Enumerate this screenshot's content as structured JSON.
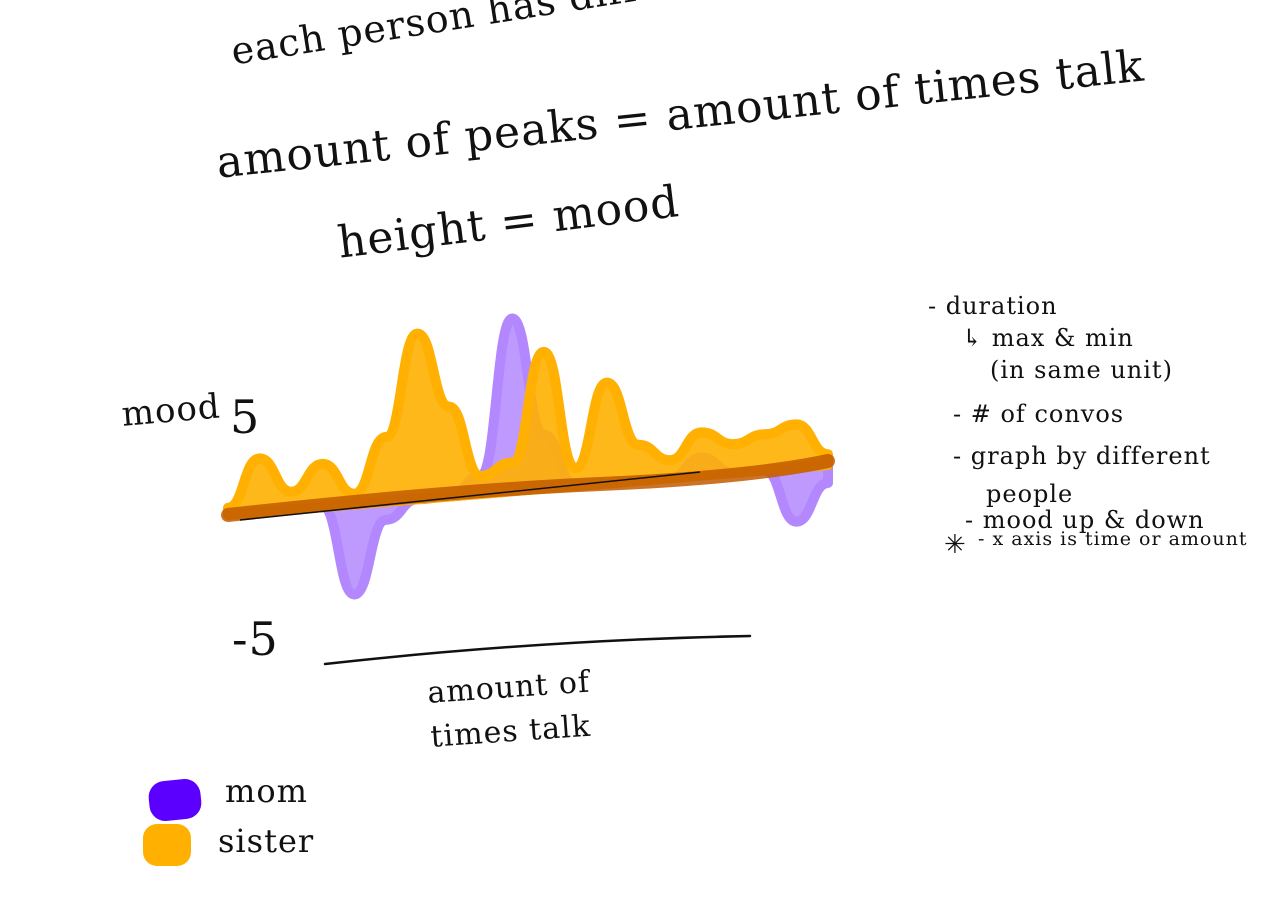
{
  "heading": {
    "line1": "each person has different color",
    "line2": "amount of peaks = amount of times talk",
    "line3": "height = mood"
  },
  "axes": {
    "y_label": "mood",
    "y_max": "5",
    "y_min": "-5",
    "x_label": "amount of times talk"
  },
  "legend": [
    {
      "label": "mom",
      "color": "#5b00ff"
    },
    {
      "label": "sister",
      "color": "#ffb000"
    }
  ],
  "notes": [
    "- duration",
    "↳ max & min",
    "(in same unit)",
    "- # of convos",
    "- graph by different",
    "people",
    "- mood up & down",
    "- x axis is time or amount"
  ],
  "colors": {
    "mom_fill": "#b388ff",
    "sister_fill": "#ffb000",
    "overlap": "#c25a00",
    "ink": "#111111"
  },
  "star_icon": "asterisk-icon",
  "chart_data": {
    "type": "area",
    "ylim": [
      -5,
      5
    ],
    "series": [
      {
        "name": "mom",
        "values": [
          0,
          0,
          0,
          0,
          -2.5,
          -0.5,
          0,
          0,
          0.5,
          4.8,
          1.5,
          0,
          0,
          0,
          0,
          0.5,
          0,
          0,
          -1.5,
          -0.5
        ]
      },
      {
        "name": "sister",
        "values": [
          0.2,
          1.5,
          0.5,
          1.2,
          0.3,
          1.8,
          4.6,
          2.5,
          0.5,
          0.8,
          3.8,
          0.5,
          2.8,
          1.0,
          0.5,
          1.2,
          0.8,
          1.0,
          1.2,
          0.3
        ]
      }
    ]
  }
}
